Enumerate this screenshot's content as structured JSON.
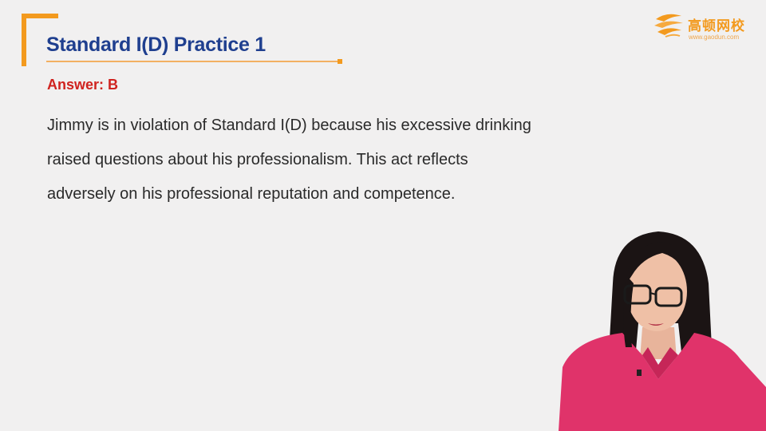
{
  "slide": {
    "title": "Standard I(D) Practice 1",
    "answer": "Answer: B",
    "body_lines": [
      "Jimmy is in violation of Standard I(D) because his excessive drinking",
      "raised questions about his professionalism. This act reflects",
      "adversely on his professional reputation and competence."
    ]
  },
  "logo": {
    "name": "高顿网校",
    "url": "www.gaodun.com",
    "mark": "gaodun-logo-icon"
  },
  "colors": {
    "title": "#1f3f8f",
    "accent_orange": "#f39a1e",
    "answer_red": "#d0231f",
    "body_text": "#2a2a2a",
    "background": "#f1f0f0",
    "presenter_top": "#e0336a"
  }
}
